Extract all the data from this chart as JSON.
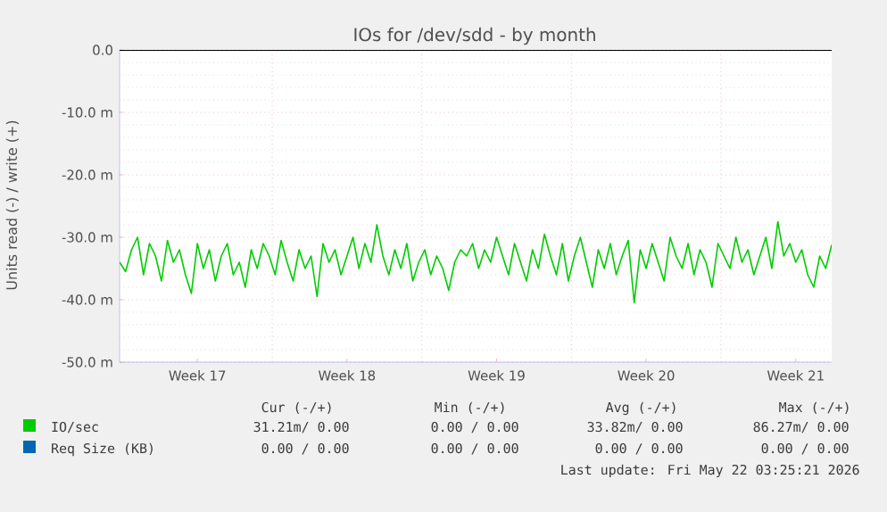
{
  "chart_data": {
    "type": "line",
    "title": "IOs for /dev/sdd - by month",
    "ylabel": "Units read (-) / write (+)",
    "categories": [
      null,
      null,
      null,
      null,
      null,
      null,
      null,
      null,
      null,
      null,
      null,
      null,
      null,
      "Week 17",
      null,
      null,
      null,
      null,
      null,
      null,
      null,
      null,
      null,
      null,
      null,
      null,
      null,
      null,
      null,
      null,
      null,
      null,
      null,
      null,
      null,
      null,
      null,
      null,
      "Week 18",
      null,
      null,
      null,
      null,
      null,
      null,
      null,
      null,
      null,
      null,
      null,
      null,
      null,
      null,
      null,
      null,
      null,
      null,
      null,
      null,
      null,
      null,
      null,
      null,
      "Week 19",
      null,
      null,
      null,
      null,
      null,
      null,
      null,
      null,
      null,
      null,
      null,
      null,
      null,
      null,
      null,
      null,
      null,
      null,
      null,
      null,
      null,
      null,
      null,
      null,
      "Week 20",
      null,
      null,
      null,
      null,
      null,
      null,
      null,
      null,
      null,
      null,
      null,
      null,
      null,
      null,
      null,
      null,
      null,
      null,
      null,
      null,
      null,
      null,
      null,
      null,
      "Week 21",
      null,
      null,
      null,
      null,
      null,
      null
    ],
    "ylim": [
      -50,
      0
    ],
    "yticks": [
      {
        "value": -50,
        "label": "-50.0 m"
      },
      {
        "value": -40,
        "label": "-40.0 m"
      },
      {
        "value": -30,
        "label": "-30.0 m"
      },
      {
        "value": -20,
        "label": "-20.0 m"
      },
      {
        "value": -10,
        "label": "-10.0 m"
      },
      {
        "value": 0,
        "label": "0.0"
      }
    ],
    "grid": true,
    "legend": "bottom",
    "marker": "none",
    "line_style": "solid",
    "ref_lines": [
      {
        "axis": "y",
        "value": 0,
        "color": "#000000"
      }
    ],
    "series": [
      {
        "name": "IO/sec",
        "color": "#00cc00",
        "values": [
          -34,
          -35.5,
          -32,
          -30,
          -36,
          -31,
          -33,
          -37,
          -30.5,
          -34,
          -32,
          -36,
          -39,
          -31,
          -35,
          -32,
          -37,
          -33,
          -31,
          -36,
          -34,
          -38,
          -32,
          -35,
          -31,
          -33,
          -36,
          -30.5,
          -34,
          -37,
          -32,
          -35,
          -33,
          -39.5,
          -31,
          -34,
          -32,
          -36,
          -33,
          -30,
          -35,
          -31,
          -34,
          -28,
          -33,
          -36,
          -32,
          -35,
          -31,
          -37,
          -34,
          -32,
          -36,
          -33,
          -35,
          -38.5,
          -34,
          -32,
          -33,
          -31,
          -35,
          -32,
          -34,
          -30,
          -33,
          -36,
          -31,
          -34,
          -37,
          -32,
          -35,
          -29.5,
          -33,
          -36,
          -31,
          -37,
          -33,
          -30,
          -34,
          -38,
          -32,
          -35,
          -31,
          -36,
          -33,
          -30.5,
          -40.5,
          -32,
          -35,
          -31,
          -34,
          -37,
          -30,
          -33,
          -35,
          -31,
          -36,
          -32,
          -34,
          -38,
          -31,
          -33,
          -35,
          -30,
          -34,
          -32,
          -36,
          -33,
          -30,
          -35,
          -27.5,
          -33,
          -31,
          -34,
          -32,
          -36,
          -38,
          -33,
          -35,
          -31.2
        ]
      },
      {
        "name": "Req Size (KB)",
        "color": "#0066b3",
        "values": [
          null,
          null,
          null,
          null,
          null,
          null,
          null,
          null,
          null,
          null,
          null,
          null,
          null,
          null,
          null,
          null,
          null,
          null,
          null,
          null,
          null,
          null,
          null,
          null,
          null,
          null,
          null,
          null,
          null,
          null,
          null,
          null,
          null,
          null,
          null,
          null,
          null,
          null,
          null,
          null,
          null,
          null,
          null,
          null,
          null,
          null,
          null,
          null,
          null,
          null,
          null,
          null,
          null,
          null,
          null,
          null,
          null,
          null,
          null,
          null,
          null,
          null,
          null,
          null,
          null,
          null,
          null,
          null,
          null,
          null,
          null,
          null,
          null,
          null,
          null,
          null,
          null,
          null,
          null,
          null,
          null,
          null,
          null,
          null,
          null,
          null,
          null,
          null,
          null,
          null,
          null,
          null,
          null,
          null,
          null,
          null,
          null,
          null,
          null,
          null,
          null,
          null,
          null,
          null,
          null,
          null,
          null,
          null,
          null,
          null,
          null,
          null,
          null,
          null,
          null,
          null,
          null,
          null,
          null,
          null
        ]
      }
    ],
    "annotations": [
      "Cur (-/+)",
      "Min (-/+)",
      "Avg (-/+)",
      "Max (-/+)",
      "31.21m/ 0.00",
      "0.00 / 0.00",
      "33.82m/ 0.00",
      "86.27m/ 0.00",
      "0.00 / 0.00",
      "0.00 / 0.00",
      "0.00 / 0.00",
      "0.00 / 0.00",
      "Last update: Fri May 22 03:25:21 2026"
    ]
  }
}
